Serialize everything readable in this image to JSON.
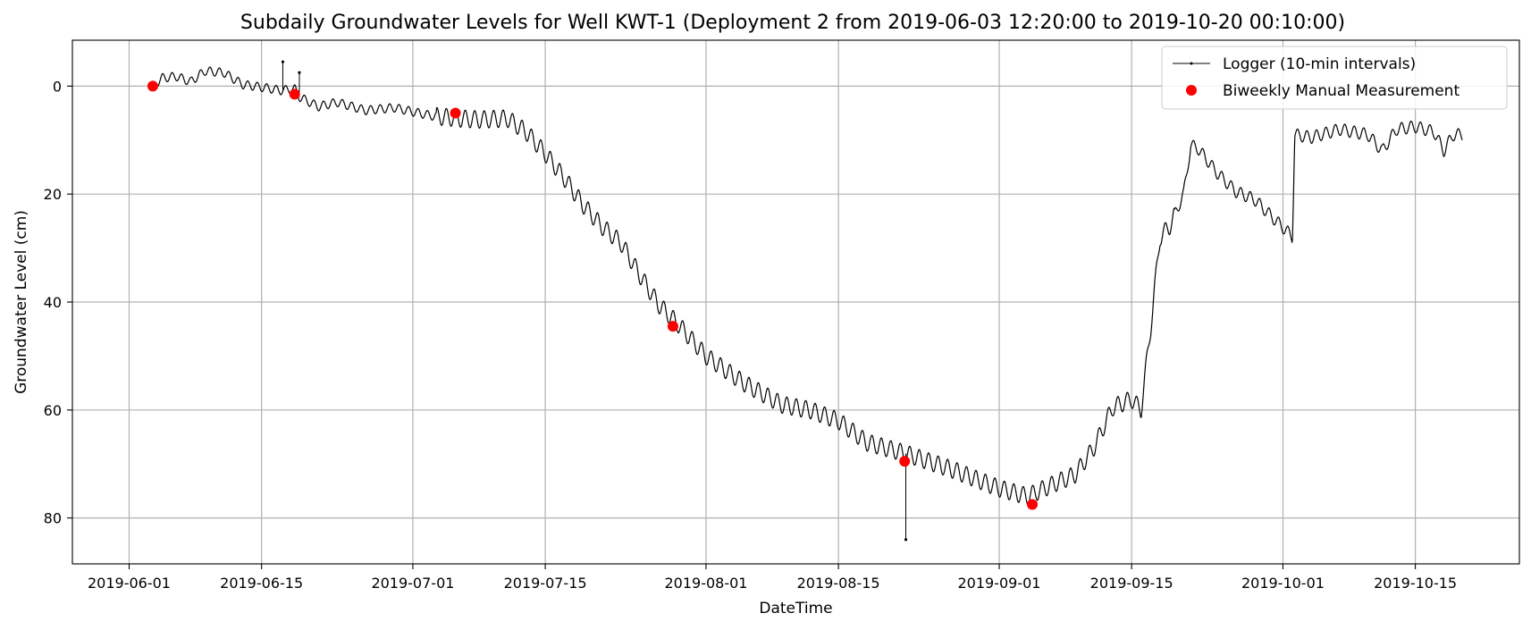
{
  "chart_data": {
    "type": "line",
    "title": "Subdaily Groundwater Levels for Well KWT-1 (Deployment 2 from 2019-06-03 12:20:00 to 2019-10-20 00:10:00)",
    "xlabel": "DateTime",
    "ylabel": "Groundwater Level (cm)",
    "x_axis_type": "date",
    "xlim": [
      "2019-05-26",
      "2019-10-26"
    ],
    "ylim": [
      -8.5,
      88.5
    ],
    "y_inverted": true,
    "grid": true,
    "legend_position": "top-right",
    "x_ticks": [
      "2019-06-01",
      "2019-06-15",
      "2019-07-01",
      "2019-07-15",
      "2019-08-01",
      "2019-08-15",
      "2019-09-01",
      "2019-09-15",
      "2019-10-01",
      "2019-10-15"
    ],
    "y_ticks": [
      0,
      20,
      40,
      60,
      80
    ],
    "series": [
      {
        "name": "Logger (10-min intervals)",
        "style": "line",
        "color": "#000000",
        "diurnal_amplitude_cm": 1.6,
        "trend": [
          {
            "t": "2019-06-03T12:20",
            "y": 0.0
          },
          {
            "t": "2019-06-04T12:00",
            "y": -1.5
          },
          {
            "t": "2019-06-06T00:00",
            "y": -1.8
          },
          {
            "t": "2019-06-07T12:00",
            "y": -0.8
          },
          {
            "t": "2019-06-09T00:00",
            "y": -2.8
          },
          {
            "t": "2019-06-11T00:00",
            "y": -2.5
          },
          {
            "t": "2019-06-13T00:00",
            "y": -0.3
          },
          {
            "t": "2019-06-15T00:00",
            "y": 0.2
          },
          {
            "t": "2019-06-17T00:00",
            "y": 0.8
          },
          {
            "t": "2019-06-18T12:00",
            "y": 0.5
          },
          {
            "t": "2019-06-19T00:00",
            "y": 2.0
          },
          {
            "t": "2019-06-21T00:00",
            "y": 3.8
          },
          {
            "t": "2019-06-23T00:00",
            "y": 3.0
          },
          {
            "t": "2019-06-26T00:00",
            "y": 4.5
          },
          {
            "t": "2019-06-29T00:00",
            "y": 4.0
          },
          {
            "t": "2019-07-03T00:00",
            "y": 5.5
          },
          {
            "t": "2019-07-06T00:00",
            "y": 6.0
          },
          {
            "t": "2019-07-08T00:00",
            "y": 6.2
          },
          {
            "t": "2019-07-11T00:00",
            "y": 6.0
          },
          {
            "t": "2019-07-13T00:00",
            "y": 8.5
          },
          {
            "t": "2019-07-15T00:00",
            "y": 12.5
          },
          {
            "t": "2019-07-17T00:00",
            "y": 17.0
          },
          {
            "t": "2019-07-19T00:00",
            "y": 22.0
          },
          {
            "t": "2019-07-21T00:00",
            "y": 26.0
          },
          {
            "t": "2019-07-23T00:00",
            "y": 29.0
          },
          {
            "t": "2019-07-25T00:00",
            "y": 35.0
          },
          {
            "t": "2019-07-27T00:00",
            "y": 40.5
          },
          {
            "t": "2019-07-29T00:00",
            "y": 44.0
          },
          {
            "t": "2019-08-01T00:00",
            "y": 50.0
          },
          {
            "t": "2019-08-05T00:00",
            "y": 55.0
          },
          {
            "t": "2019-08-09T00:00",
            "y": 59.0
          },
          {
            "t": "2019-08-12T00:00",
            "y": 60.0
          },
          {
            "t": "2019-08-15T00:00",
            "y": 62.0
          },
          {
            "t": "2019-08-18T00:00",
            "y": 66.0
          },
          {
            "t": "2019-08-22T00:00",
            "y": 68.0
          },
          {
            "t": "2019-08-27T00:00",
            "y": 71.0
          },
          {
            "t": "2019-09-01T00:00",
            "y": 74.5
          },
          {
            "t": "2019-09-04T00:00",
            "y": 76.0
          },
          {
            "t": "2019-09-07T00:00",
            "y": 73.5
          },
          {
            "t": "2019-09-09T00:00",
            "y": 72.0
          },
          {
            "t": "2019-09-11T00:00",
            "y": 67.0
          },
          {
            "t": "2019-09-13T00:00",
            "y": 59.5
          },
          {
            "t": "2019-09-15T00:00",
            "y": 58.0
          },
          {
            "t": "2019-09-16T00:00",
            "y": 60.0
          },
          {
            "t": "2019-09-17T00:00",
            "y": 45.0
          },
          {
            "t": "2019-09-18T00:00",
            "y": 28.0
          },
          {
            "t": "2019-09-19T00:00",
            "y": 26.0
          },
          {
            "t": "2019-09-20T12:00",
            "y": 20.0
          },
          {
            "t": "2019-09-21T06:00",
            "y": 11.0
          },
          {
            "t": "2019-09-22T00:00",
            "y": 11.5
          },
          {
            "t": "2019-09-24T00:00",
            "y": 16.0
          },
          {
            "t": "2019-09-26T00:00",
            "y": 19.5
          },
          {
            "t": "2019-09-28T00:00",
            "y": 21.0
          },
          {
            "t": "2019-09-30T00:00",
            "y": 24.5
          },
          {
            "t": "2019-10-01T12:00",
            "y": 27.0
          },
          {
            "t": "2019-10-02T00:00",
            "y": 28.0
          },
          {
            "t": "2019-10-02T06:00",
            "y": 9.0
          },
          {
            "t": "2019-10-04T00:00",
            "y": 9.5
          },
          {
            "t": "2019-10-07T00:00",
            "y": 8.0
          },
          {
            "t": "2019-10-10T00:00",
            "y": 9.0
          },
          {
            "t": "2019-10-11T12:00",
            "y": 12.0
          },
          {
            "t": "2019-10-13T00:00",
            "y": 8.0
          },
          {
            "t": "2019-10-15T00:00",
            "y": 7.5
          },
          {
            "t": "2019-10-17T00:00",
            "y": 8.5
          },
          {
            "t": "2019-10-18T00:00",
            "y": 12.0
          },
          {
            "t": "2019-10-19T00:00",
            "y": 9.0
          },
          {
            "t": "2019-10-20T00:10",
            "y": 9.0
          }
        ],
        "spikes": [
          {
            "t": "2019-06-17T06:00",
            "y": -4.5
          },
          {
            "t": "2019-06-19T00:00",
            "y": -2.5
          },
          {
            "t": "2019-08-22T03:00",
            "y": 84.0
          }
        ]
      },
      {
        "name": "Biweekly Manual Measurement",
        "style": "scatter",
        "color": "#ff0000",
        "points": [
          {
            "t": "2019-06-03T12:00",
            "y": 0.0
          },
          {
            "t": "2019-06-18T12:00",
            "y": 1.5
          },
          {
            "t": "2019-07-05T12:00",
            "y": 5.0
          },
          {
            "t": "2019-07-28T12:00",
            "y": 44.5
          },
          {
            "t": "2019-08-22T00:00",
            "y": 69.5
          },
          {
            "t": "2019-09-04T12:00",
            "y": 77.5
          }
        ]
      }
    ]
  }
}
